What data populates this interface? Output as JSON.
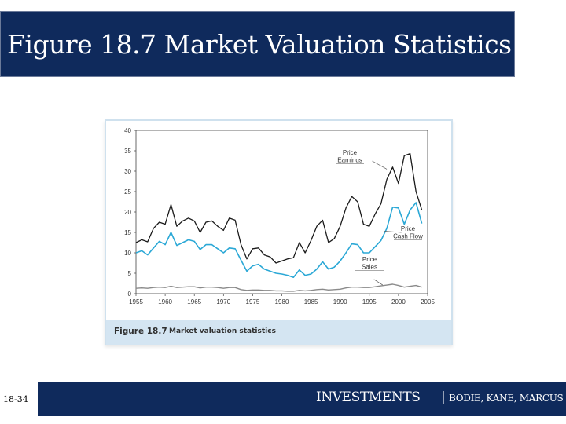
{
  "slide": {
    "title": "Figure 18.7 Market Valuation Statistics",
    "number": "18-34"
  },
  "footer": {
    "brand": "INVESTMENTS",
    "separator": "|",
    "authors": "BODIE, KANE, MARCUS"
  },
  "figure": {
    "number": "Figure 18.7",
    "caption": "Market valuation statistics"
  },
  "chart_data": {
    "type": "line",
    "title": "",
    "xlabel": "",
    "ylabel": "",
    "xlim": [
      1955,
      2005
    ],
    "ylim": [
      0,
      40
    ],
    "x_ticks": [
      "1955",
      "1960",
      "1965",
      "1970",
      "1975",
      "1980",
      "1985",
      "1990",
      "1995",
      "2000",
      "2005"
    ],
    "y_ticks": [
      "0",
      "5",
      "10",
      "15",
      "20",
      "25",
      "30",
      "35",
      "40"
    ],
    "grid": false,
    "colors": {
      "pe": "#1a1a1a",
      "pcf": "#2ba8d6",
      "ps": "#8a8a8a"
    },
    "annotations": [
      {
        "series": "pe",
        "lines": [
          "Price",
          "Earnings"
        ],
        "x": 1997,
        "y": 30
      },
      {
        "series": "pcf",
        "lines": [
          "Price",
          "Cash Flow"
        ],
        "x": 1996,
        "y": 16
      },
      {
        "series": "ps",
        "lines": [
          "Price",
          "Sales"
        ],
        "x": 1995,
        "y": 2.5
      }
    ],
    "series": [
      {
        "key": "pe",
        "x": [
          1955,
          1956,
          1957,
          1958,
          1959,
          1960,
          1961,
          1962,
          1963,
          1964,
          1965,
          1966,
          1967,
          1968,
          1969,
          1970,
          1971,
          1972,
          1973,
          1974,
          1975,
          1976,
          1977,
          1978,
          1979,
          1980,
          1981,
          1982,
          1983,
          1984,
          1985,
          1986,
          1987,
          1988,
          1989,
          1990,
          1991,
          1992,
          1993,
          1994,
          1995,
          1996,
          1997,
          1998,
          1999,
          2000,
          2001,
          2002,
          2003,
          2004
        ],
        "values": [
          12.5,
          13.2,
          12.7,
          16.0,
          17.5,
          17.0,
          21.8,
          16.5,
          17.8,
          18.5,
          17.8,
          15.0,
          17.5,
          17.8,
          16.5,
          15.5,
          18.5,
          18.0,
          12.0,
          8.5,
          11.0,
          11.2,
          9.5,
          9.0,
          7.5,
          8.0,
          8.5,
          8.8,
          12.5,
          10.0,
          13.0,
          16.5,
          18.0,
          12.5,
          13.5,
          16.5,
          21.0,
          23.8,
          22.5,
          17.0,
          16.5,
          19.5,
          22.0,
          28.0,
          31.0,
          27.0,
          33.8,
          34.3,
          25.0,
          20.5
        ]
      },
      {
        "key": "pcf",
        "x": [
          1955,
          1956,
          1957,
          1958,
          1959,
          1960,
          1961,
          1962,
          1963,
          1964,
          1965,
          1966,
          1967,
          1968,
          1969,
          1970,
          1971,
          1972,
          1973,
          1974,
          1975,
          1976,
          1977,
          1978,
          1979,
          1980,
          1981,
          1982,
          1983,
          1984,
          1985,
          1986,
          1987,
          1988,
          1989,
          1990,
          1991,
          1992,
          1993,
          1994,
          1995,
          1996,
          1997,
          1998,
          1999,
          2000,
          2001,
          2002,
          2003,
          2004
        ],
        "values": [
          10.0,
          10.5,
          9.5,
          11.2,
          12.8,
          12.0,
          15.0,
          11.8,
          12.5,
          13.2,
          12.8,
          10.8,
          12.0,
          12.0,
          11.0,
          10.0,
          11.2,
          11.0,
          8.2,
          5.5,
          6.8,
          7.2,
          6.0,
          5.5,
          5.0,
          4.8,
          4.5,
          4.0,
          5.8,
          4.5,
          4.8,
          6.0,
          7.8,
          6.0,
          6.5,
          8.0,
          10.0,
          12.2,
          12.0,
          10.0,
          10.0,
          11.5,
          13.0,
          16.0,
          21.2,
          21.0,
          17.0,
          20.5,
          22.3,
          17.2
        ]
      },
      {
        "key": "ps",
        "x": [
          1955,
          1956,
          1957,
          1958,
          1959,
          1960,
          1961,
          1962,
          1963,
          1964,
          1965,
          1966,
          1967,
          1968,
          1969,
          1970,
          1971,
          1972,
          1973,
          1974,
          1975,
          1976,
          1977,
          1978,
          1979,
          1980,
          1981,
          1982,
          1983,
          1984,
          1985,
          1986,
          1987,
          1988,
          1989,
          1990,
          1991,
          1992,
          1993,
          1994,
          1995,
          1996,
          1997,
          1998,
          1999,
          2000,
          2001,
          2002,
          2003,
          2004
        ],
        "values": [
          1.3,
          1.4,
          1.3,
          1.5,
          1.6,
          1.5,
          1.8,
          1.5,
          1.6,
          1.7,
          1.7,
          1.4,
          1.6,
          1.6,
          1.5,
          1.3,
          1.5,
          1.5,
          1.0,
          0.8,
          0.9,
          0.9,
          0.8,
          0.8,
          0.7,
          0.7,
          0.6,
          0.6,
          0.8,
          0.7,
          0.8,
          1.0,
          1.1,
          0.9,
          1.0,
          1.1,
          1.4,
          1.6,
          1.6,
          1.5,
          1.5,
          1.7,
          1.9,
          2.1,
          2.3,
          2.0,
          1.6,
          1.8,
          2.0,
          1.6
        ]
      }
    ]
  }
}
